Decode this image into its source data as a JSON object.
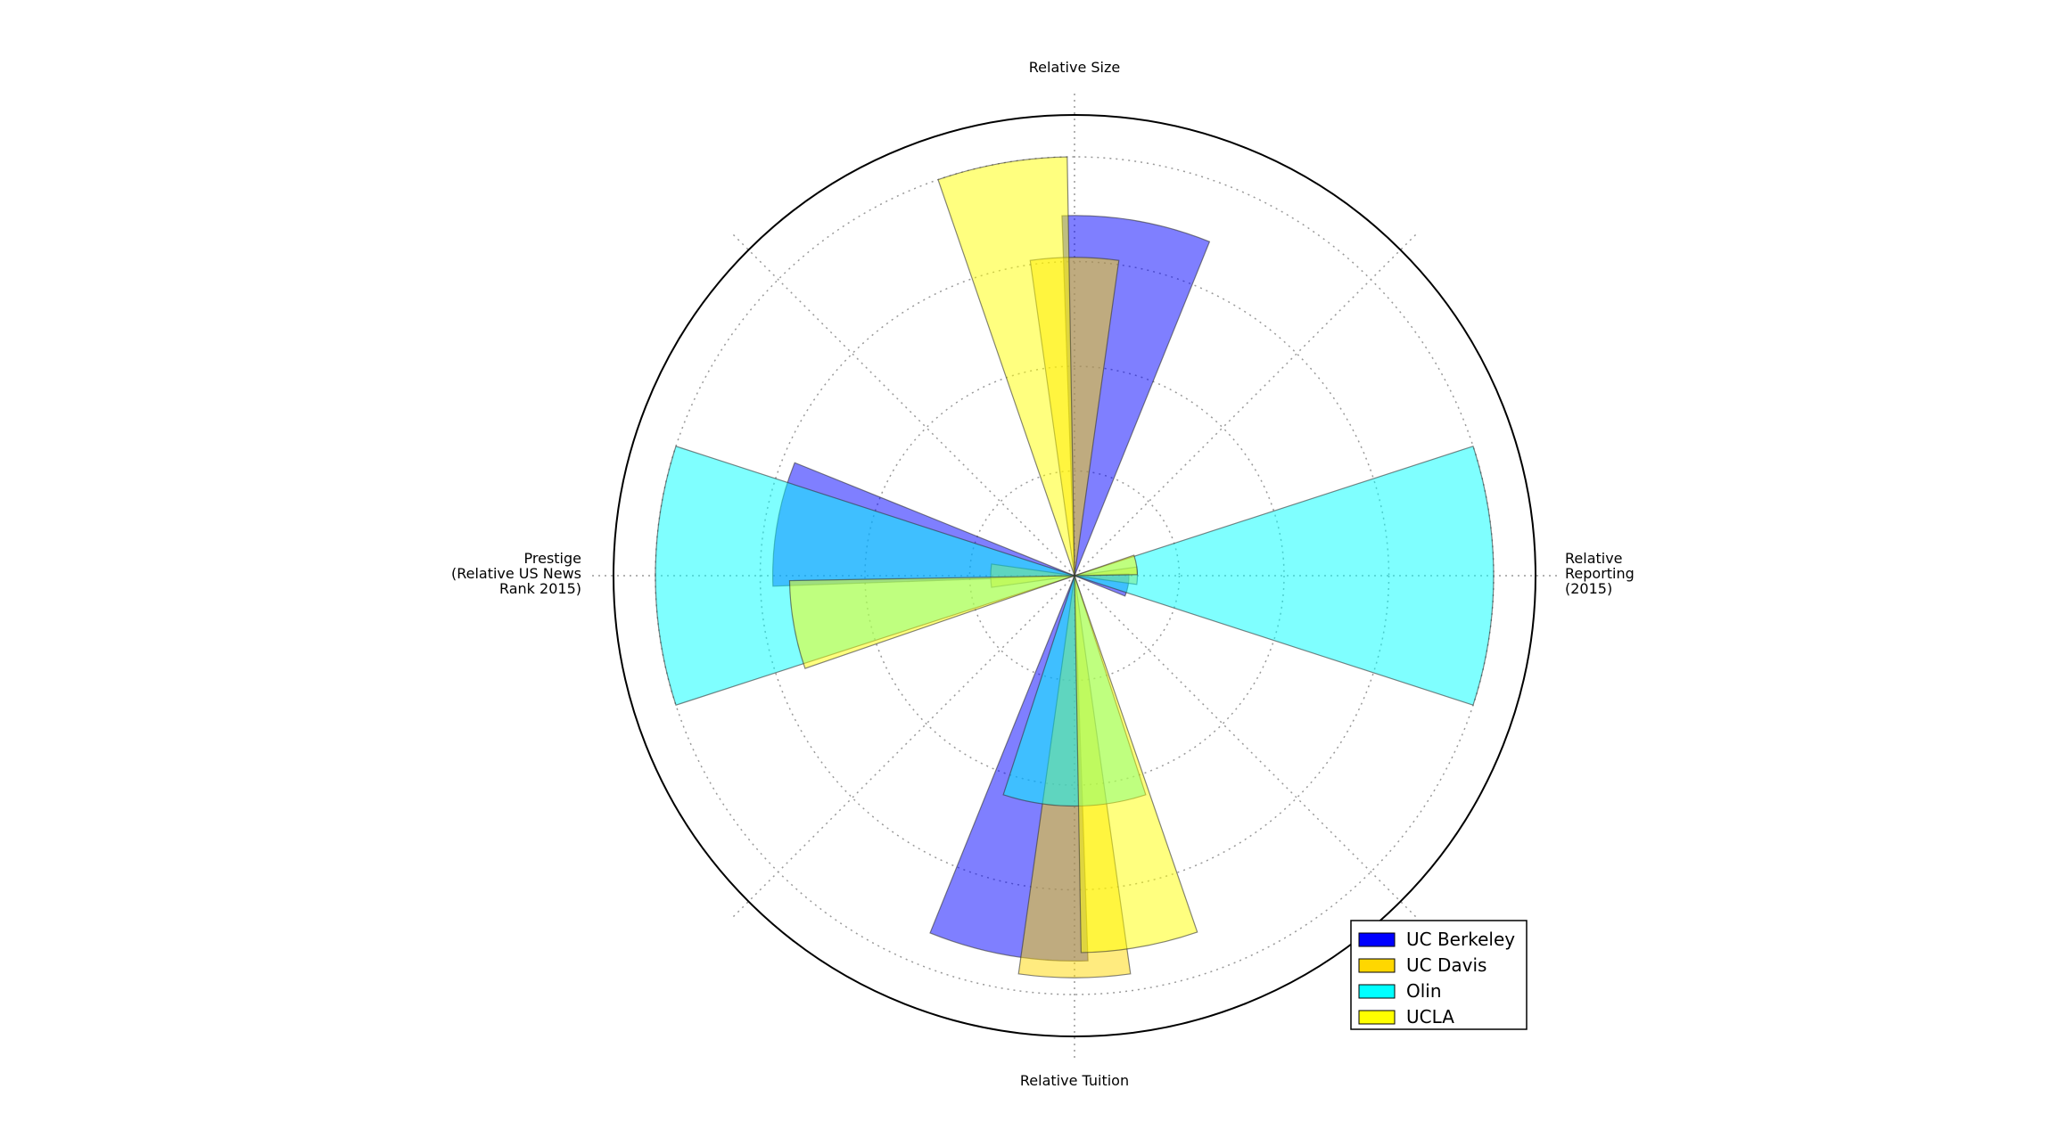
{
  "chart_data": {
    "type": "polar-bar",
    "title": "",
    "grid": true,
    "legend_position": "bottom-right",
    "axes": [
      {
        "name": "size",
        "label_lines": [
          "Relative Size"
        ]
      },
      {
        "name": "reporting",
        "label_lines": [
          "Relative",
          "Reporting",
          "(2015)"
        ]
      },
      {
        "name": "tuition",
        "label_lines": [
          "Relative Tuition"
        ]
      },
      {
        "name": "prestige",
        "label_lines": [
          "Prestige",
          "(Relative US News",
          "Rank 2015)"
        ]
      }
    ],
    "series": [
      {
        "name": "UC Berkeley",
        "color": "#0000ff",
        "values": {
          "size": 0.86,
          "reporting": 0.13,
          "tuition": 0.92,
          "prestige": 0.72
        }
      },
      {
        "name": "UC Davis",
        "color": "#ffd700",
        "values": {
          "size": 0.76,
          "reporting": 0.15,
          "tuition": 0.96,
          "prestige": 0.2
        }
      },
      {
        "name": "Olin",
        "color": "#00ffff",
        "values": {
          "size": 0.0,
          "reporting": 1.0,
          "tuition": 0.55,
          "prestige": 1.0
        }
      },
      {
        "name": "UCLA",
        "color": "#ffff00",
        "values": {
          "size": 1.0,
          "reporting": 0.15,
          "tuition": 0.9,
          "prestige": 0.68
        }
      }
    ]
  }
}
